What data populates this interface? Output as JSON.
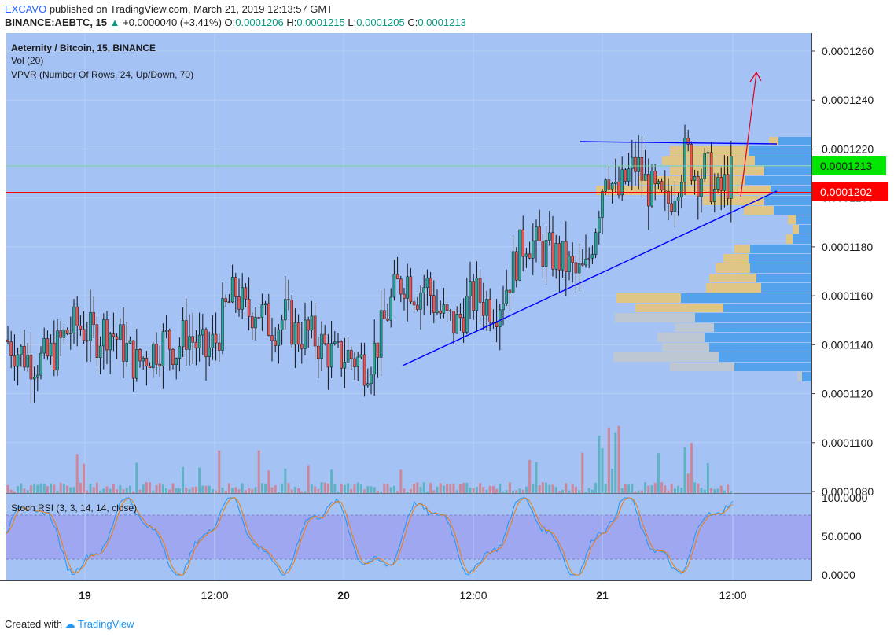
{
  "header": {
    "author": "EXCAVO",
    "published": " published on TradingView.com, March 21, 2019 12:13:57 GMT",
    "symbol": "BINANCE:AEBTC, 15",
    "change": " +0.0000040 (+3.41%)",
    "change_arrow": "▲",
    "o_label": "O:",
    "o_value": "0.0001206",
    "h_label": "H:",
    "h_value": "0.0001215",
    "l_label": "L:",
    "l_value": "0.0001205",
    "c_label": "C:",
    "c_value": "0.0001213"
  },
  "legend": {
    "title": "Aeternity / Bitcoin, 15, BINANCE",
    "vol": "Vol (20)",
    "vpvr": "VPVR (Number Of Rows, 24, Up/Down, 70)",
    "stoch": "Stoch RSI (3, 3, 14, 14, close)"
  },
  "footer": {
    "created": "Created with ",
    "brand": "TradingView"
  },
  "colors": {
    "background": "#a4c2f4",
    "stoch_band": "#9ea7f0",
    "up": "#26a69a",
    "down": "#ef5350",
    "trend": "#0000ff",
    "arrow": "#e0001b",
    "price_last": "#00e600",
    "price_line": "#ff0000",
    "vpvr_blue": "#4a9eea",
    "vpvr_yellow": "#e6c77a",
    "vpvr_gray": "#c0c8d0"
  },
  "chart_data": [
    {
      "type": "candlestick",
      "title": "Aeternity / Bitcoin, 15, BINANCE",
      "x_labels": [
        "19",
        "12:00",
        "20",
        "12:00",
        "21",
        "12:00"
      ],
      "y_ticks": [
        "0.0001260",
        "0.0001240",
        "0.0001220",
        "0.0001200",
        "0.0001180",
        "0.0001160",
        "0.0001140",
        "0.0001120",
        "0.0001100",
        "0.0001080"
      ],
      "ylim": [
        0.0001078,
        0.0001265
      ],
      "last_price": "0.0001213",
      "marked_price": "0.0001202",
      "close_path": [
        [
          0,
          0.0001142
        ],
        [
          8,
          0.0001138
        ],
        [
          16,
          0.0001135
        ],
        [
          24,
          0.0001133
        ],
        [
          32,
          0.0001134
        ],
        [
          40,
          0.0001138
        ],
        [
          48,
          0.0001145
        ],
        [
          56,
          0.0001148
        ],
        [
          64,
          0.0001146
        ],
        [
          72,
          0.0001143
        ],
        [
          80,
          0.0001147
        ],
        [
          88,
          0.0001143
        ],
        [
          96,
          0.0001138
        ],
        [
          104,
          0.0001132
        ],
        [
          112,
          0.0001136
        ],
        [
          120,
          0.0001139
        ],
        [
          128,
          0.0001142
        ],
        [
          136,
          0.0001138
        ],
        [
          144,
          0.0001145
        ],
        [
          152,
          0.000114
        ],
        [
          160,
          0.0001136
        ],
        [
          168,
          0.0001142
        ],
        [
          176,
          0.0001155
        ],
        [
          184,
          0.0001162
        ],
        [
          192,
          0.0001152
        ],
        [
          200,
          0.0001156
        ],
        [
          208,
          0.0001149
        ],
        [
          216,
          0.0001148
        ],
        [
          224,
          0.0001152
        ],
        [
          232,
          0.0001144
        ],
        [
          240,
          0.0001145
        ],
        [
          248,
          0.0001142
        ],
        [
          256,
          0.0001138
        ],
        [
          264,
          0.0001134
        ],
        [
          272,
          0.0001136
        ],
        [
          280,
          0.0001134
        ],
        [
          288,
          0.0001132
        ],
        [
          296,
          0.0001139
        ],
        [
          304,
          0.0001152
        ],
        [
          312,
          0.0001163
        ],
        [
          320,
          0.0001168
        ],
        [
          328,
          0.0001161
        ],
        [
          336,
          0.0001165
        ],
        [
          344,
          0.0001155
        ],
        [
          352,
          0.000115
        ],
        [
          360,
          0.0001148
        ],
        [
          368,
          0.0001156
        ],
        [
          376,
          0.000116
        ],
        [
          384,
          0.0001157
        ],
        [
          392,
          0.0001156
        ],
        [
          400,
          0.0001164
        ],
        [
          408,
          0.0001175
        ],
        [
          416,
          0.0001184
        ],
        [
          424,
          0.000118
        ],
        [
          432,
          0.0001178
        ],
        [
          440,
          0.0001176
        ],
        [
          448,
          0.0001173
        ],
        [
          456,
          0.0001168
        ],
        [
          464,
          0.000117
        ],
        [
          472,
          0.0001192
        ],
        [
          480,
          0.0001215
        ],
        [
          488,
          0.0001199
        ],
        [
          496,
          0.0001208
        ],
        [
          504,
          0.0001214
        ],
        [
          512,
          0.0001205
        ],
        [
          520,
          0.00012
        ],
        [
          528,
          0.0001196
        ],
        [
          536,
          0.0001207
        ],
        [
          544,
          0.0001219
        ],
        [
          552,
          0.0001209
        ],
        [
          560,
          0.0001212
        ],
        [
          568,
          0.00012
        ],
        [
          576,
          0.0001206
        ],
        [
          584,
          0.0001213
        ]
      ]
    },
    {
      "type": "line",
      "title": "Stoch RSI (3, 3, 14, 14, close)",
      "y_ticks": [
        "100.0000",
        "50.0000",
        "0.0000"
      ],
      "ylim": [
        0,
        100
      ],
      "band": [
        20,
        80
      ]
    }
  ]
}
